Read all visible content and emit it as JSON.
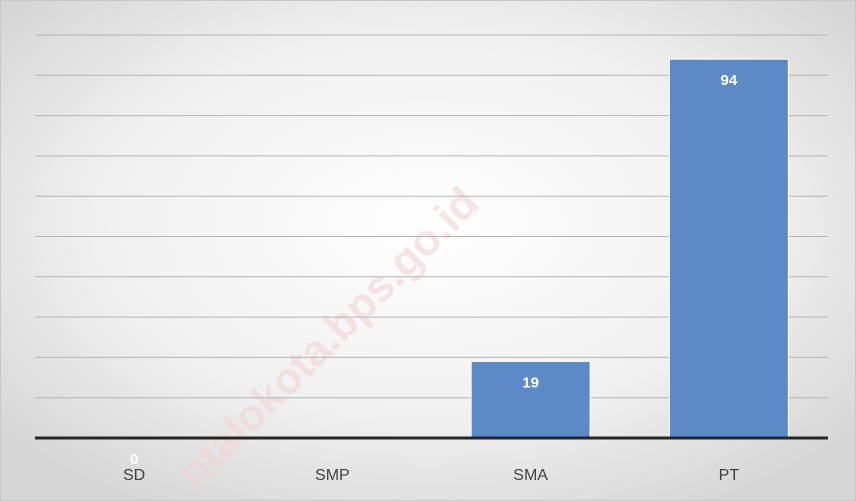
{
  "chart_data": {
    "type": "bar",
    "categories": [
      "SD",
      "SMP",
      "SMA",
      "PT"
    ],
    "values": [
      0,
      null,
      19,
      94
    ],
    "color": "#5b8ac6",
    "ylim": [
      0,
      100
    ],
    "yticks": [
      0,
      10,
      20,
      30,
      40,
      50,
      60,
      70,
      80,
      90,
      100
    ],
    "grid": true,
    "watermark": "ntalokota.bps.go.id"
  }
}
